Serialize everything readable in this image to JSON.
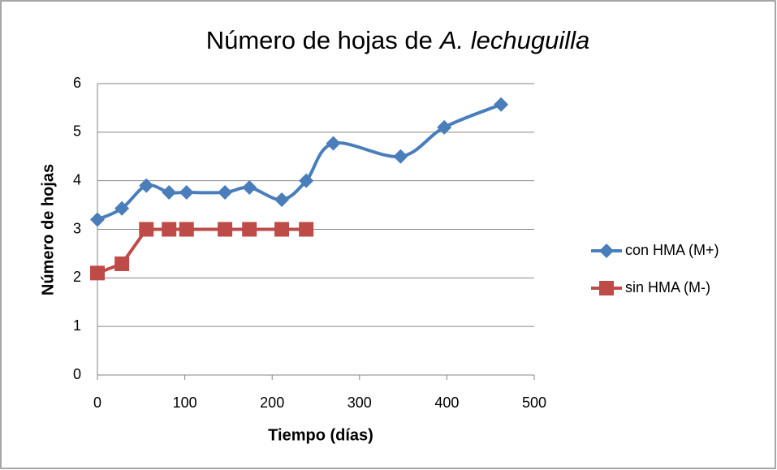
{
  "chart_data": {
    "type": "line",
    "title": [
      "Número de hojas de",
      "A. lechuguilla"
    ],
    "x_label": "Tiempo (días)",
    "y_label": "Número de hojas",
    "x": [
      0,
      28,
      56,
      82,
      102,
      146,
      174,
      211,
      239,
      270,
      347,
      397,
      462
    ],
    "series": [
      {
        "name": "con HMA (M+)",
        "color": "#4a7ebb",
        "marker": "diamond",
        "smooth": true,
        "values": [
          3.2,
          3.43,
          3.9,
          3.76,
          3.76,
          3.76,
          3.86,
          3.61,
          4.0,
          4.77,
          4.5,
          5.1,
          5.57
        ]
      },
      {
        "name": "sin HMA (M-)",
        "color": "#be4b48",
        "marker": "square",
        "smooth": false,
        "values": [
          2.1,
          2.29,
          3,
          3,
          3,
          3,
          3,
          3,
          3,
          null,
          null,
          null,
          null
        ]
      }
    ],
    "xlim": [
      0,
      500
    ],
    "xticks": [
      0,
      100,
      200,
      300,
      400,
      500
    ],
    "ylim": [
      0,
      6
    ],
    "yticks": [
      0,
      1,
      2,
      3,
      4,
      5,
      6
    ],
    "grid": true,
    "legend": "right"
  }
}
